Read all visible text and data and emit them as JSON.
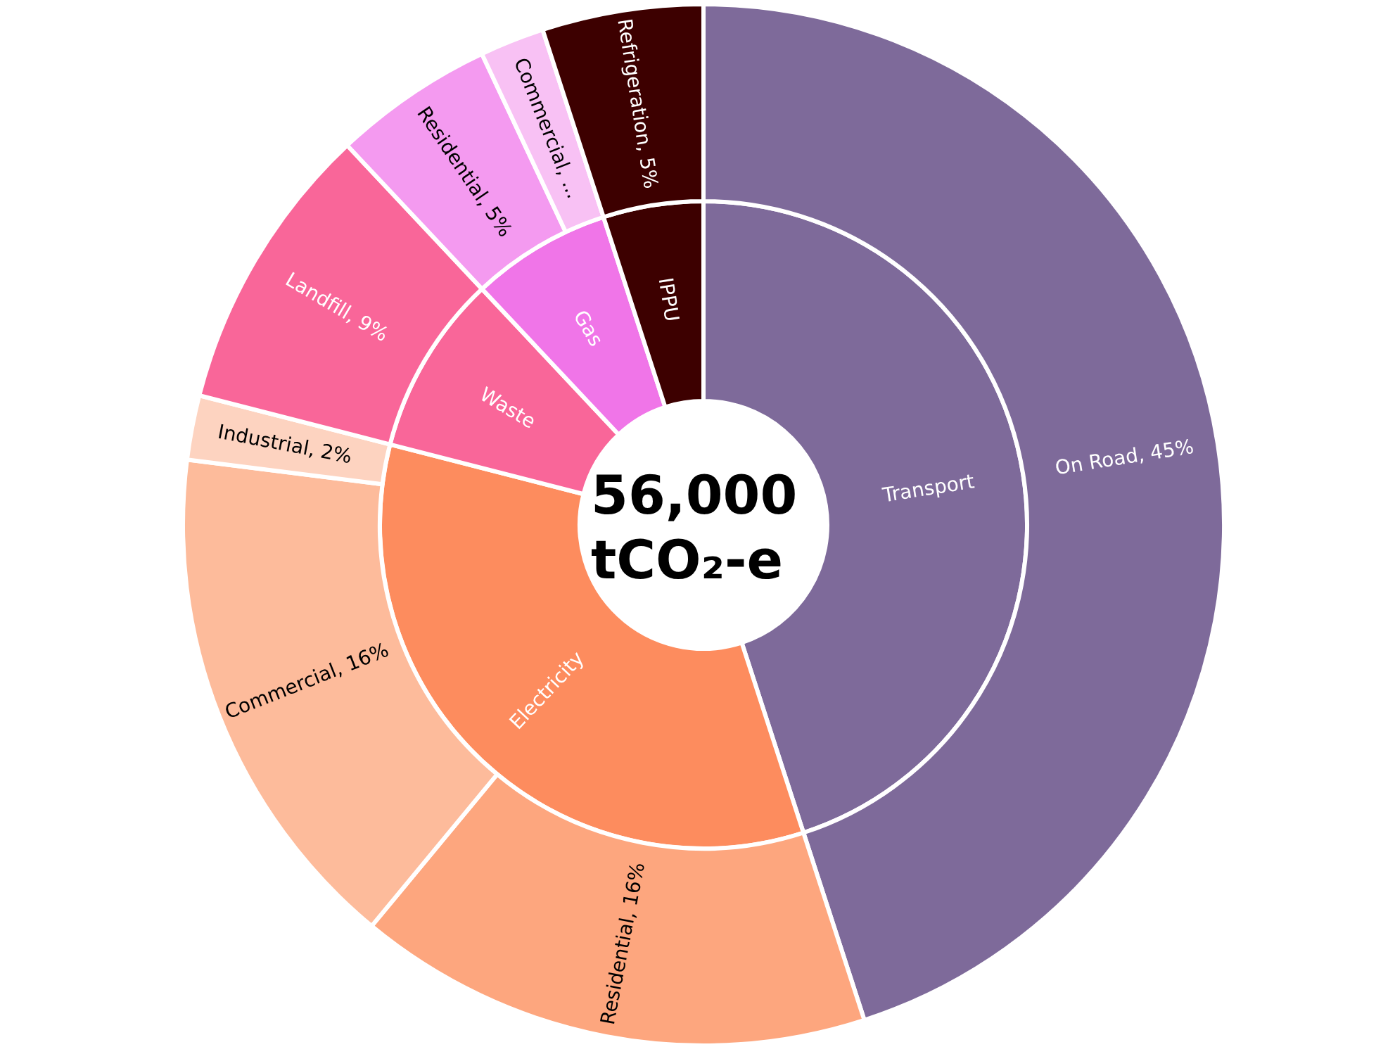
{
  "chart_data": [
    {
      "type": "donut",
      "legend": false,
      "categories": [
        "Transport",
        "Electricity",
        "Waste",
        "Gas",
        "IPPU"
      ],
      "values": [
        45,
        34,
        9,
        7,
        5
      ],
      "colors": [
        "#7e6a9a",
        "#fd8c5e",
        "#f96699",
        "#f075e8",
        "#3d0000"
      ],
      "annotations": [
        "56,000 tCO₂-e"
      ]
    },
    {
      "type": "donut",
      "legend": false,
      "categories": [
        "On Road",
        "Residential",
        "Commercial",
        "Industrial",
        "Landfill",
        "Residential",
        "Commercial",
        "Refrigeration"
      ],
      "values": [
        45,
        16,
        16,
        2,
        9,
        5,
        2,
        5
      ],
      "colors": [
        "#7e6a9a",
        "#fda67e",
        "#fdbb9b",
        "#fdd3c0",
        "#f96699",
        "#f49af0",
        "#f8c1f4",
        "#3d0000"
      ],
      "value_labels": [
        "45%",
        "16%",
        "16%",
        "2%",
        "9%",
        "5%",
        "...",
        "5%"
      ]
    }
  ]
}
